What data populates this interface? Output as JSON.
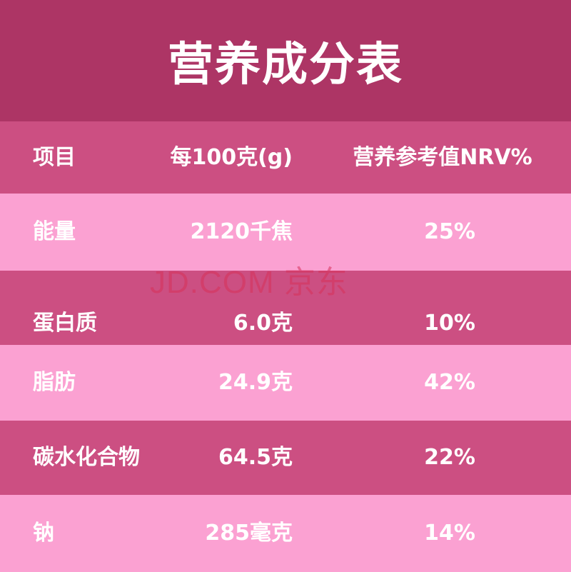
{
  "title": "营养成分表",
  "header": {
    "item": "项目",
    "per100": "每100克(g)",
    "nrv": "营养参考值NRV%"
  },
  "rows": [
    {
      "item": "能量",
      "value": "2120千焦",
      "nrv": "25%"
    },
    {
      "item": "蛋白质",
      "value": "6.0克",
      "nrv": "10%"
    },
    {
      "item": "脂肪",
      "value": "24.9克",
      "nrv": "42%"
    },
    {
      "item": "碳水化合物",
      "value": "64.5克",
      "nrv": "22%"
    },
    {
      "item": "钠",
      "value": "285毫克",
      "nrv": "14%"
    }
  ],
  "watermark": "JD.COM 京东",
  "colors": {
    "title_bg": "#AD3565",
    "dark_row": "#CC4F82",
    "light_row": "#FBA1D2"
  }
}
